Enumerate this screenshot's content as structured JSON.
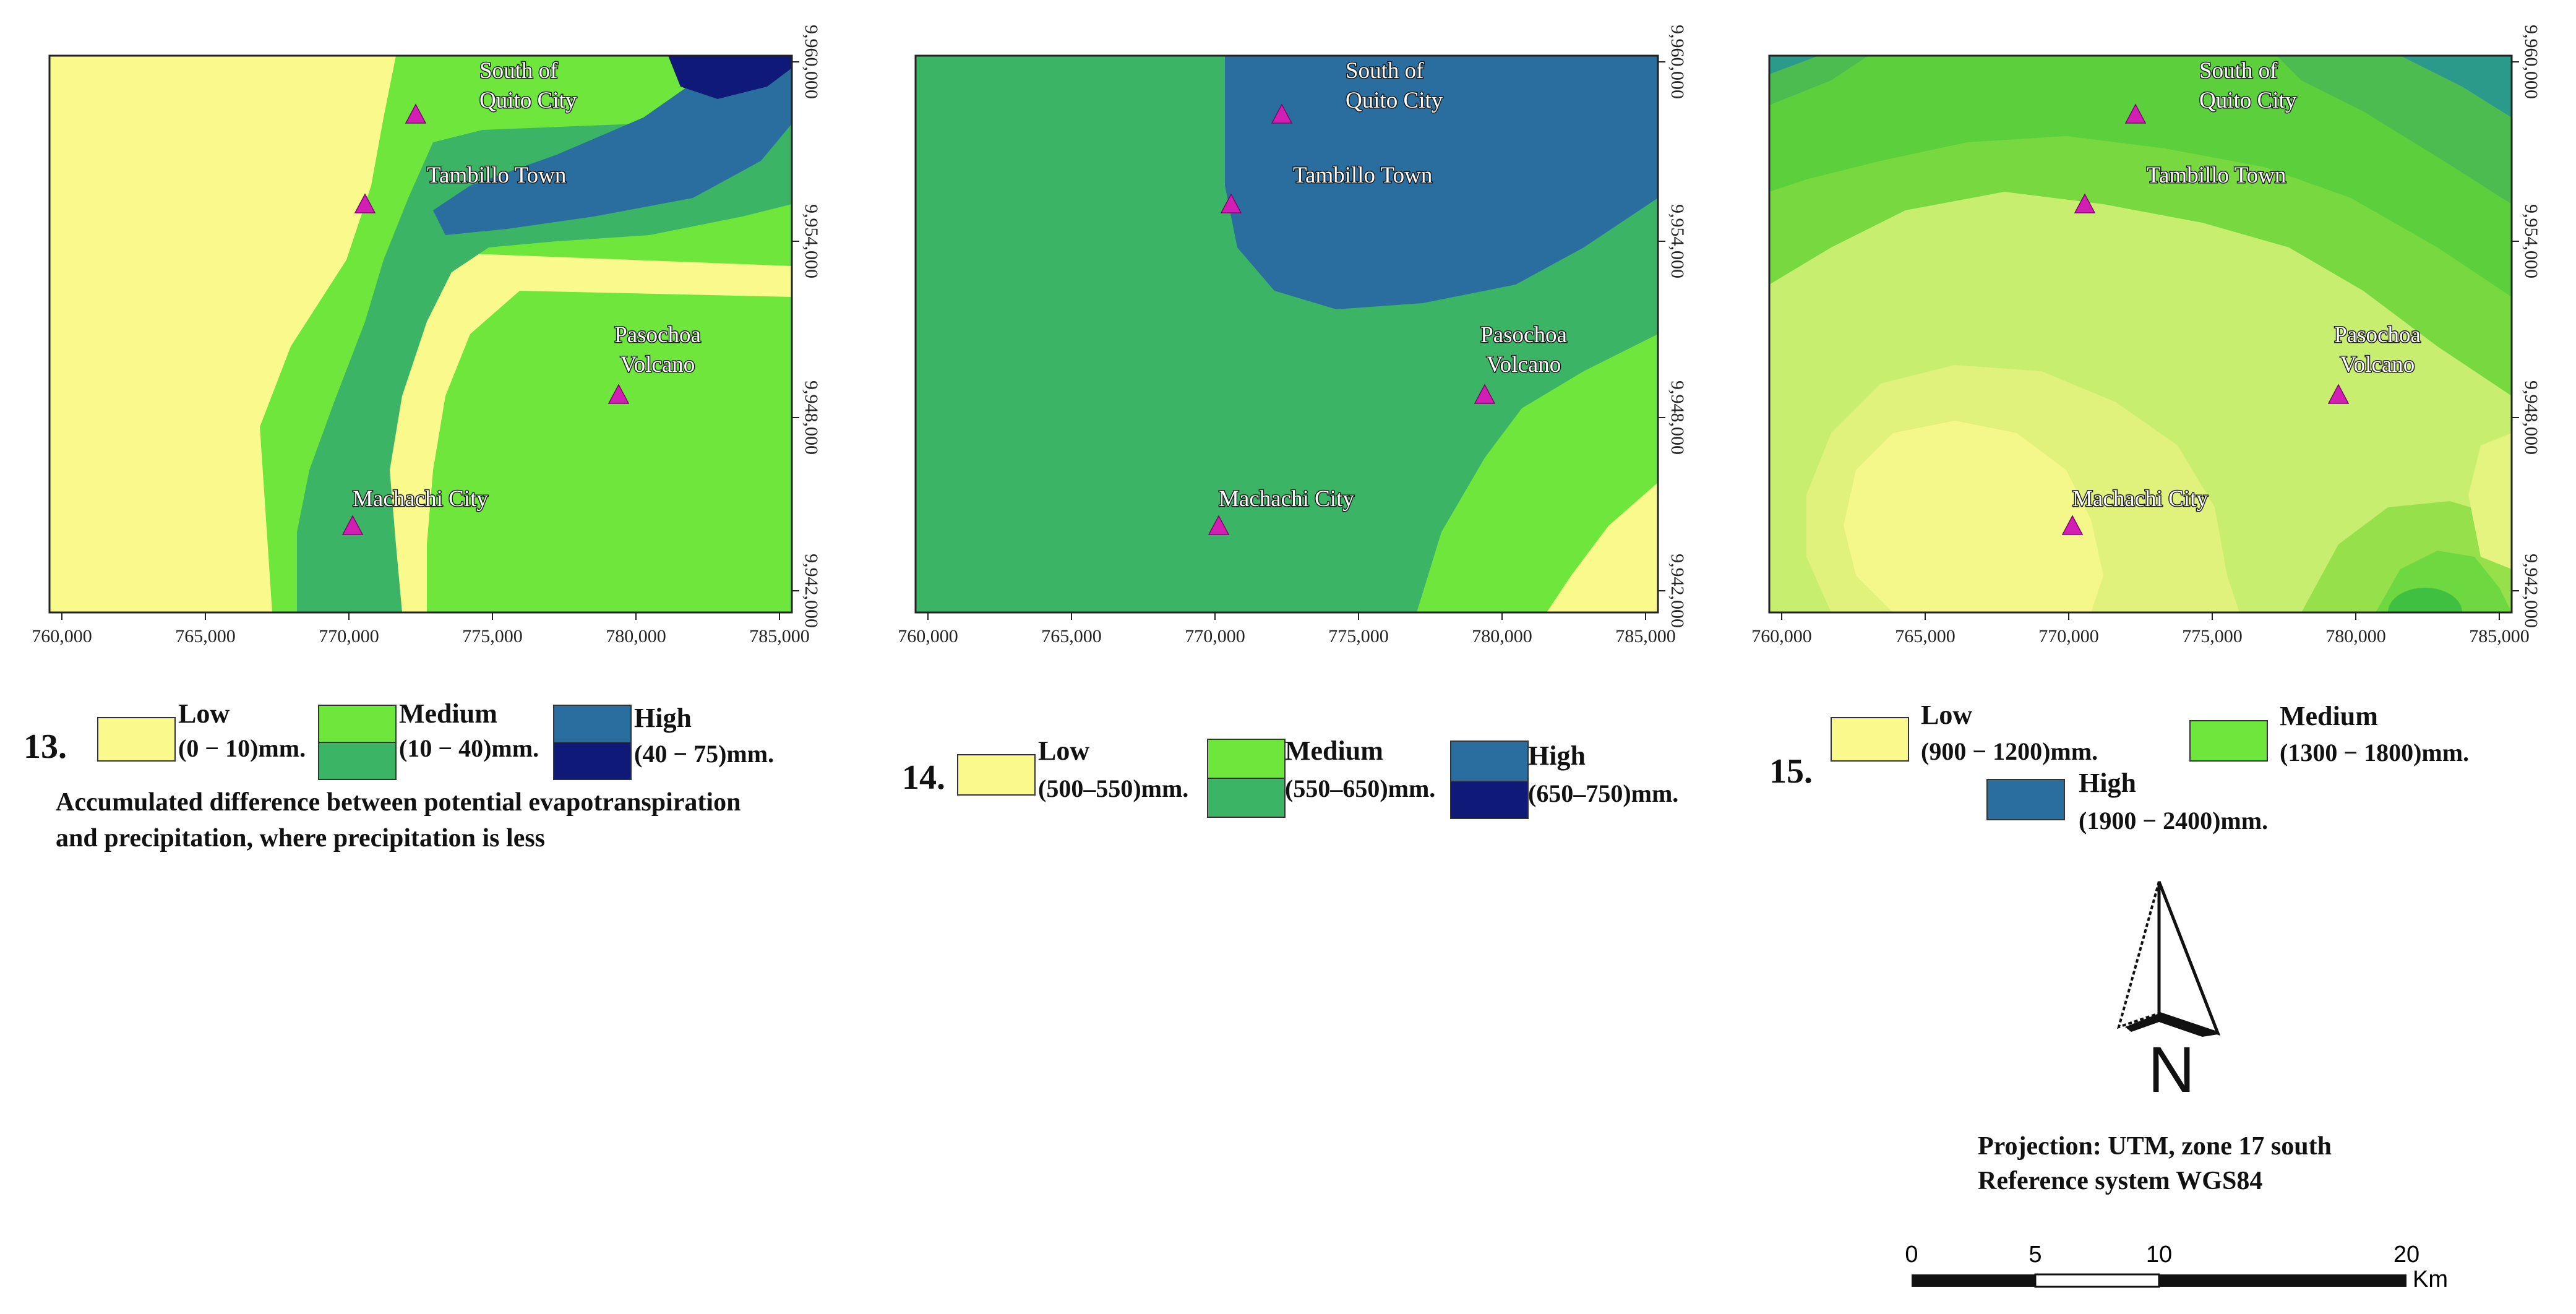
{
  "colors": {
    "yellow": "#fafa8c",
    "lime": "#6ee63c",
    "green": "#3cb466",
    "blue": "#2a6ea0",
    "navy": "#0f1a78",
    "marker": "#d21eb4"
  },
  "x_ticks": [
    "760,000",
    "765,000",
    "770,000",
    "775,000",
    "780,000",
    "785,000"
  ],
  "y_ticks": [
    "9,960,000",
    "9,954,000",
    "9,948,000",
    "9,942,000"
  ],
  "places": {
    "south_quito": [
      "South of",
      "Quito City"
    ],
    "tambillo": "Tambillo Town",
    "pasochoa": [
      "Pasochoa",
      "Volcano"
    ],
    "machachi": "Machachi City"
  },
  "maps": [
    {
      "number": "13.",
      "legend": {
        "low": {
          "label": "Low",
          "range": "(0 − 10)mm."
        },
        "medium": {
          "label": "Medium",
          "range": "(10 − 40)mm."
        },
        "high": {
          "label": "High",
          "range": "(40 − 75)mm."
        }
      },
      "caption": [
        "Accumulated difference between potential evapotranspiration",
        "and precipitation, where precipitation is less"
      ]
    },
    {
      "number": "14.",
      "legend": {
        "low": {
          "label": "Low",
          "range": "(500–550)mm."
        },
        "medium": {
          "label": "Medium",
          "range": "(550–650)mm."
        },
        "high": {
          "label": "High",
          "range": "(650–750)mm."
        }
      }
    },
    {
      "number": "15.",
      "legend": {
        "low": {
          "label": "Low",
          "range": "(900 − 1200)mm."
        },
        "medium": {
          "label": "Medium",
          "range": "(1300 − 1800)mm."
        },
        "high": {
          "label": "High",
          "range": "(1900 − 2400)mm."
        }
      }
    }
  ],
  "north_arrow": {
    "label": "N"
  },
  "projection": [
    "Projection: UTM, zone 17 south",
    "Reference system WGS84"
  ],
  "scale_bar": {
    "ticks": [
      "0",
      "5",
      "10",
      "20"
    ],
    "unit": "Km"
  }
}
